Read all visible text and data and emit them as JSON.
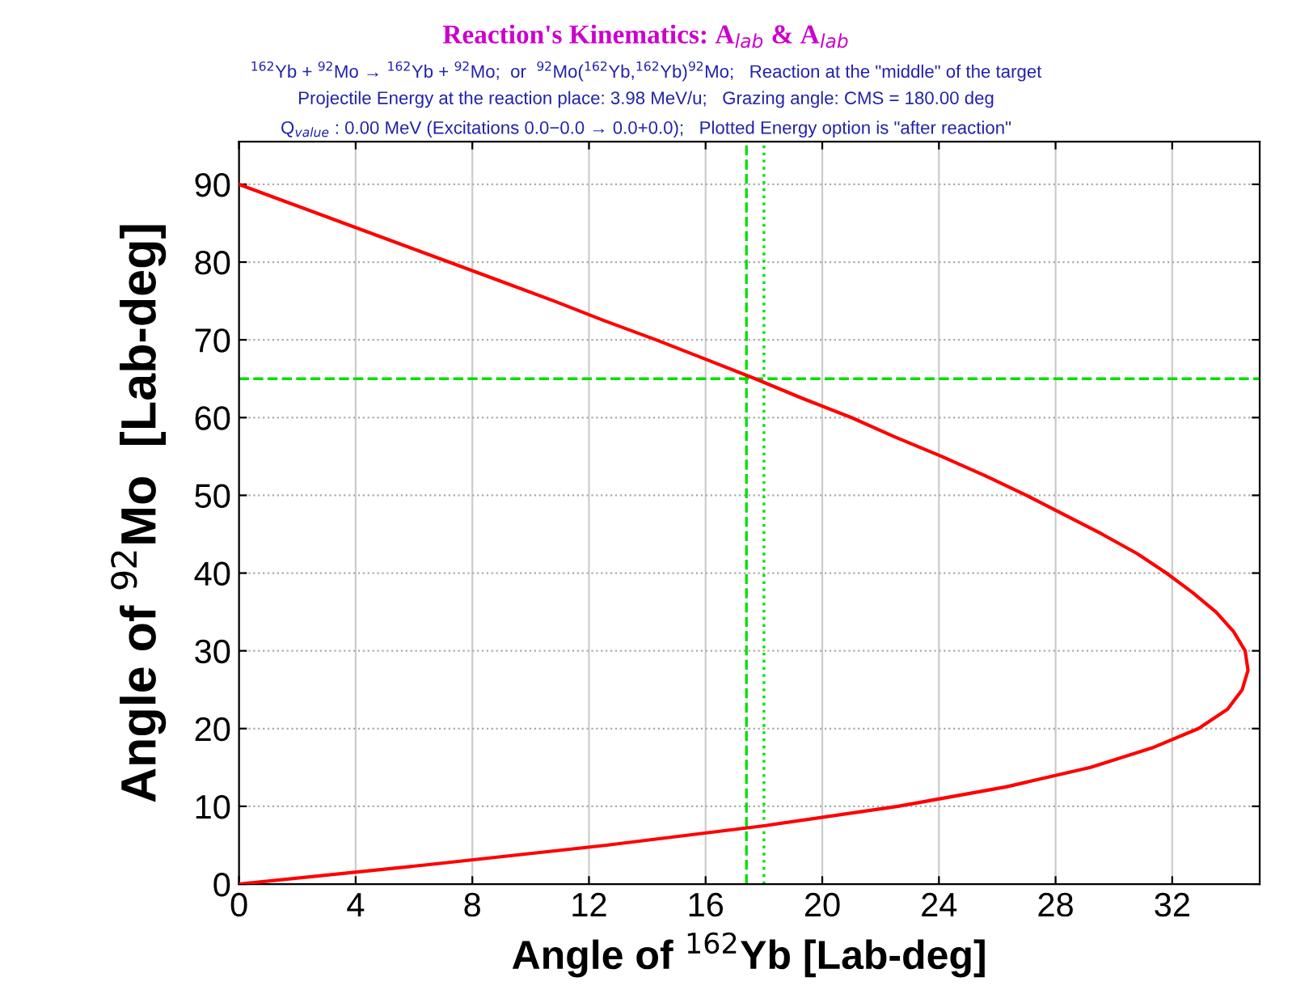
{
  "chart_data": {
    "type": "line",
    "title": "Reaction's Kinematics: A$_{lab}$ & A$_{lab}$",
    "subtitle": "$^{162}$Yb + $^{92}$Mo → $^{162}$Yb + $^{92}$Mo;  or  $^{92}$Mo($^{162}$Yb,$^{162}$Yb)$^{92}$Mo;   Reaction at the \"middle\" of the target",
    "annotations": [
      "Projectile Energy at the reaction place: 3.98 MeV/u;   Grazing angle: CMS = 180.00 deg",
      "Q$_{value}$ : 0.00 MeV (Excitations 0.0−0.0 → 0.0+0.0);   Plotted Energy option is \"after reaction\""
    ],
    "xlabel": "Angle of $^{162}$Yb [Lab-deg]",
    "ylabel": "Angle of $^{92}$Mo  [Lab-deg]",
    "series": [
      {
        "color": "#ff0000",
        "x": [
          0.0,
          1.8,
          3.6,
          5.4,
          7.2,
          9.0,
          10.8,
          12.5,
          14.3,
          16.0,
          17.7,
          19.3,
          21.0,
          22.5,
          24.1,
          25.6,
          27.0,
          28.3,
          29.6,
          30.8,
          31.8,
          32.7,
          33.5,
          34.1,
          34.5,
          34.6,
          34.4,
          33.9,
          32.9,
          31.3,
          29.2,
          26.3,
          22.6,
          18.0,
          12.6,
          6.5,
          0.0
        ],
        "values": [
          90.0,
          87.5,
          85.0,
          82.5,
          80.0,
          77.5,
          75.0,
          72.5,
          70.0,
          67.5,
          65.0,
          62.5,
          60.0,
          57.5,
          55.0,
          52.5,
          50.0,
          47.5,
          45.0,
          42.5,
          40.0,
          37.5,
          35.0,
          32.5,
          30.0,
          27.5,
          25.0,
          22.5,
          20.0,
          17.5,
          15.0,
          12.5,
          10.0,
          7.5,
          5.0,
          2.5,
          0.0
        ]
      }
    ],
    "xlim": [
      0,
      35
    ],
    "ylim": [
      0,
      95.5
    ],
    "xticks": [
      0,
      4,
      8,
      12,
      16,
      20,
      24,
      28,
      32
    ],
    "yticks": [
      0,
      10,
      20,
      30,
      40,
      50,
      60,
      70,
      80,
      90
    ],
    "ref_lines": [
      {
        "axis": "x",
        "value": 17.4,
        "color": "#00e000",
        "line_style": "dashed"
      },
      {
        "axis": "x",
        "value": 18.0,
        "color": "#00e000",
        "line_style": "dotted"
      },
      {
        "axis": "y",
        "value": 65,
        "color": "#00e000",
        "line_style": "dashed"
      }
    ],
    "grid": true,
    "marker": "none",
    "line_style": "solid",
    "legend": false
  }
}
